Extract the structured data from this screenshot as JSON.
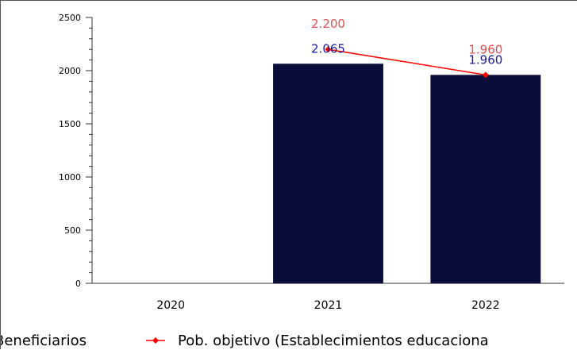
{
  "chart_data": {
    "type": "bar",
    "categories": [
      "2020",
      "2021",
      "2022"
    ],
    "series": [
      {
        "name": "Beneficiarios",
        "kind": "bar",
        "color": "#0c0c3a",
        "label_color": "#1a1aa0",
        "values": [
          null,
          2065,
          1960
        ],
        "labels": [
          "",
          "2.065",
          "1.960"
        ]
      },
      {
        "name": "Pob. objetivo (Establecimientos educaciona",
        "kind": "line",
        "color": "#ff0000",
        "label_color": "#e05050",
        "values": [
          null,
          2200,
          1960
        ],
        "labels": [
          "",
          "2.200",
          "1.960"
        ]
      }
    ],
    "ylim": [
      0,
      2500
    ],
    "yticks": [
      0,
      500,
      1000,
      1500,
      2000,
      2500
    ],
    "ytick_labels": [
      "0",
      "500",
      "1000",
      "1500",
      "2000",
      "2500"
    ],
    "title": "",
    "xlabel": "",
    "ylabel": "",
    "legend_position": "bottom",
    "grid": false
  }
}
